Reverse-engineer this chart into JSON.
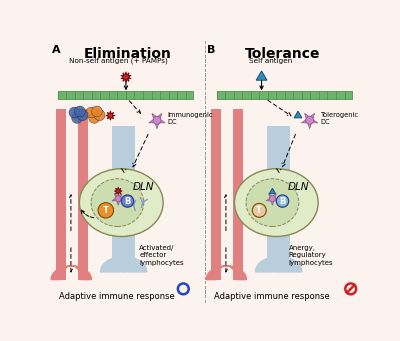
{
  "bg_color": "#fdf3ee",
  "left_title": "Elimination",
  "right_title": "Tolerance",
  "left_subtitle": "Non-self antigen (+ PAMPs)",
  "right_subtitle": "Self antigen",
  "left_dc_label": "Immunogenic\nDC",
  "right_dc_label": "Tolerogenic\nDC",
  "left_dln_label": "DLN",
  "right_dln_label": "DLN",
  "left_bottom_label": "Activated/\neffector\nlymphocytes",
  "right_bottom_label": "Anergy,\nRegulatory\nlymphocytes",
  "left_footer": "Adaptive immune response",
  "right_footer": "Adaptive immune response",
  "green_bar_color": "#6db36d",
  "green_bar_edge": "#3a8a3a",
  "vessel_color": "#e08080",
  "vessel_edge": "#c05050",
  "lymph_color": "#b8cedd",
  "lymph_edge": "#7799aa",
  "dln_outer_color": "#e0ecc8",
  "dln_outer_edge": "#888855",
  "dln_inner_color": "#ccddb0",
  "T_cell_color_L": "#e8902a",
  "T_cell_color_R": "#e8c8a0",
  "B_cell_color_L": "#6688cc",
  "B_cell_color_R": "#88b8d8",
  "antigen_red_color": "#cc2222",
  "antigen_blue_color": "#3388bb",
  "DC_color": "#cc88cc",
  "orange_cell_color": "#e8832a",
  "blue_cell_color": "#4466aa",
  "footer_circle_color": "#2244cc",
  "footer_nocirc_color": "#cc2222",
  "label_A": "A",
  "label_B": "B"
}
